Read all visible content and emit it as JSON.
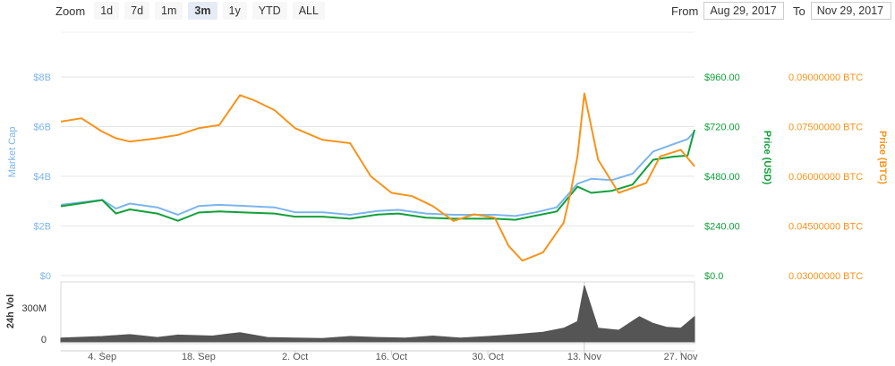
{
  "zoom": {
    "label": "Zoom",
    "buttons": [
      "1d",
      "7d",
      "1m",
      "3m",
      "1y",
      "YTD",
      "ALL"
    ],
    "active": "3m"
  },
  "range": {
    "from_label": "From",
    "from_value": "Aug 29, 2017",
    "to_label": "To",
    "to_value": "Nov 29, 2017"
  },
  "colors": {
    "market_cap": "#7cb5ec",
    "price_usd": "#11a03a",
    "price_btc": "#f7931a",
    "volume": "#555555",
    "grid": "#e6e6e6"
  },
  "chart_data": {
    "type": "line",
    "x_tick_labels": [
      "4. Sep",
      "18. Sep",
      "2. Oct",
      "16. Oct",
      "30. Oct",
      "13. Nov",
      "27. Nov"
    ],
    "x_range": [
      "Aug 29, 2017",
      "Nov 29, 2017"
    ],
    "axes": {
      "market_cap": {
        "label": "Market Cap",
        "ticks": [
          "$0",
          "$2B",
          "$4B",
          "$6B",
          "$8B"
        ],
        "range": [
          0,
          8000000000
        ]
      },
      "price_usd": {
        "label": "Price (USD)",
        "ticks": [
          "$0.0",
          "$240.00",
          "$480.00",
          "$720.00",
          "$960.00"
        ],
        "range": [
          0,
          960
        ]
      },
      "price_btc": {
        "label": "Price (BTC)",
        "ticks": [
          "0.03000000 BTC",
          "0.04500000 BTC",
          "0.06000000 BTC",
          "0.07500000 BTC",
          "0.09000000 BTC"
        ],
        "range": [
          0.03,
          0.09
        ]
      },
      "volume": {
        "label": "24h Vol",
        "ticks": [
          "0",
          "300M"
        ],
        "range": [
          0,
          600000000
        ]
      }
    },
    "series": [
      {
        "key": "market_cap",
        "axis": "market_cap",
        "x": [
          "2017-08-29",
          "2017-09-01",
          "2017-09-04",
          "2017-09-06",
          "2017-09-08",
          "2017-09-12",
          "2017-09-15",
          "2017-09-18",
          "2017-09-21",
          "2017-09-25",
          "2017-09-29",
          "2017-10-02",
          "2017-10-06",
          "2017-10-10",
          "2017-10-14",
          "2017-10-17",
          "2017-10-21",
          "2017-10-25",
          "2017-10-28",
          "2017-10-31",
          "2017-11-03",
          "2017-11-06",
          "2017-11-09",
          "2017-11-12",
          "2017-11-14",
          "2017-11-17",
          "2017-11-20",
          "2017-11-23",
          "2017-11-26",
          "2017-11-28",
          "2017-11-29"
        ],
        "values": [
          2850000000.0,
          2950000000.0,
          3050000000.0,
          2700000000.0,
          2900000000.0,
          2750000000.0,
          2450000000.0,
          2800000000.0,
          2850000000.0,
          2800000000.0,
          2750000000.0,
          2550000000.0,
          2550000000.0,
          2450000000.0,
          2600000000.0,
          2650000000.0,
          2500000000.0,
          2450000000.0,
          2450000000.0,
          2450000000.0,
          2400000000.0,
          2550000000.0,
          2750000000.0,
          3700000000.0,
          3900000000.0,
          3850000000.0,
          4100000000.0,
          5000000000.0,
          5300000000.0,
          5500000000.0,
          5800000000.0
        ]
      },
      {
        "key": "price_usd",
        "axis": "price_usd",
        "x": [
          "2017-08-29",
          "2017-09-01",
          "2017-09-04",
          "2017-09-06",
          "2017-09-08",
          "2017-09-12",
          "2017-09-15",
          "2017-09-18",
          "2017-09-21",
          "2017-09-25",
          "2017-09-29",
          "2017-10-02",
          "2017-10-06",
          "2017-10-10",
          "2017-10-14",
          "2017-10-17",
          "2017-10-21",
          "2017-10-25",
          "2017-10-28",
          "2017-10-31",
          "2017-11-03",
          "2017-11-06",
          "2017-11-09",
          "2017-11-12",
          "2017-11-14",
          "2017-11-17",
          "2017-11-20",
          "2017-11-23",
          "2017-11-26",
          "2017-11-28",
          "2017-11-29"
        ],
        "values": [
          335,
          350,
          365,
          300,
          320,
          300,
          265,
          305,
          310,
          305,
          300,
          285,
          285,
          275,
          295,
          300,
          280,
          275,
          275,
          275,
          270,
          290,
          310,
          430,
          400,
          410,
          440,
          560,
          575,
          580,
          705
        ]
      },
      {
        "key": "price_btc",
        "axis": "price_btc",
        "x": [
          "2017-08-29",
          "2017-09-01",
          "2017-09-04",
          "2017-09-06",
          "2017-09-08",
          "2017-09-12",
          "2017-09-15",
          "2017-09-18",
          "2017-09-21",
          "2017-09-24",
          "2017-09-26",
          "2017-09-29",
          "2017-10-02",
          "2017-10-06",
          "2017-10-10",
          "2017-10-13",
          "2017-10-16",
          "2017-10-19",
          "2017-10-22",
          "2017-10-25",
          "2017-10-28",
          "2017-10-31",
          "2017-11-02",
          "2017-11-04",
          "2017-11-07",
          "2017-11-10",
          "2017-11-11",
          "2017-11-12",
          "2017-11-13",
          "2017-11-15",
          "2017-11-18",
          "2017-11-22",
          "2017-11-24",
          "2017-11-27",
          "2017-11-29"
        ],
        "values": [
          0.0765,
          0.0775,
          0.0735,
          0.0715,
          0.0705,
          0.0715,
          0.0725,
          0.0745,
          0.0755,
          0.0845,
          0.083,
          0.08,
          0.0745,
          0.071,
          0.07,
          0.06,
          0.055,
          0.054,
          0.051,
          0.0465,
          0.0485,
          0.0475,
          0.039,
          0.0345,
          0.037,
          0.046,
          0.055,
          0.066,
          0.085,
          0.065,
          0.055,
          0.058,
          0.066,
          0.068,
          0.063
        ]
      },
      {
        "key": "volume",
        "axis": "volume",
        "x": [
          "2017-08-29",
          "2017-09-04",
          "2017-09-08",
          "2017-09-12",
          "2017-09-15",
          "2017-09-20",
          "2017-09-24",
          "2017-09-28",
          "2017-10-02",
          "2017-10-06",
          "2017-10-10",
          "2017-10-14",
          "2017-10-18",
          "2017-10-22",
          "2017-10-26",
          "2017-10-30",
          "2017-11-03",
          "2017-11-07",
          "2017-11-10",
          "2017-11-12",
          "2017-11-13",
          "2017-11-15",
          "2017-11-18",
          "2017-11-21",
          "2017-11-23",
          "2017-11-25",
          "2017-11-27",
          "2017-11-29"
        ],
        "values": [
          40000000,
          55000000,
          75000000,
          45000000,
          70000000,
          60000000,
          95000000,
          45000000,
          40000000,
          35000000,
          55000000,
          45000000,
          40000000,
          60000000,
          40000000,
          55000000,
          75000000,
          100000000,
          140000000,
          210000000,
          580000000,
          140000000,
          120000000,
          260000000,
          190000000,
          150000000,
          140000000,
          260000000
        ]
      }
    ]
  }
}
